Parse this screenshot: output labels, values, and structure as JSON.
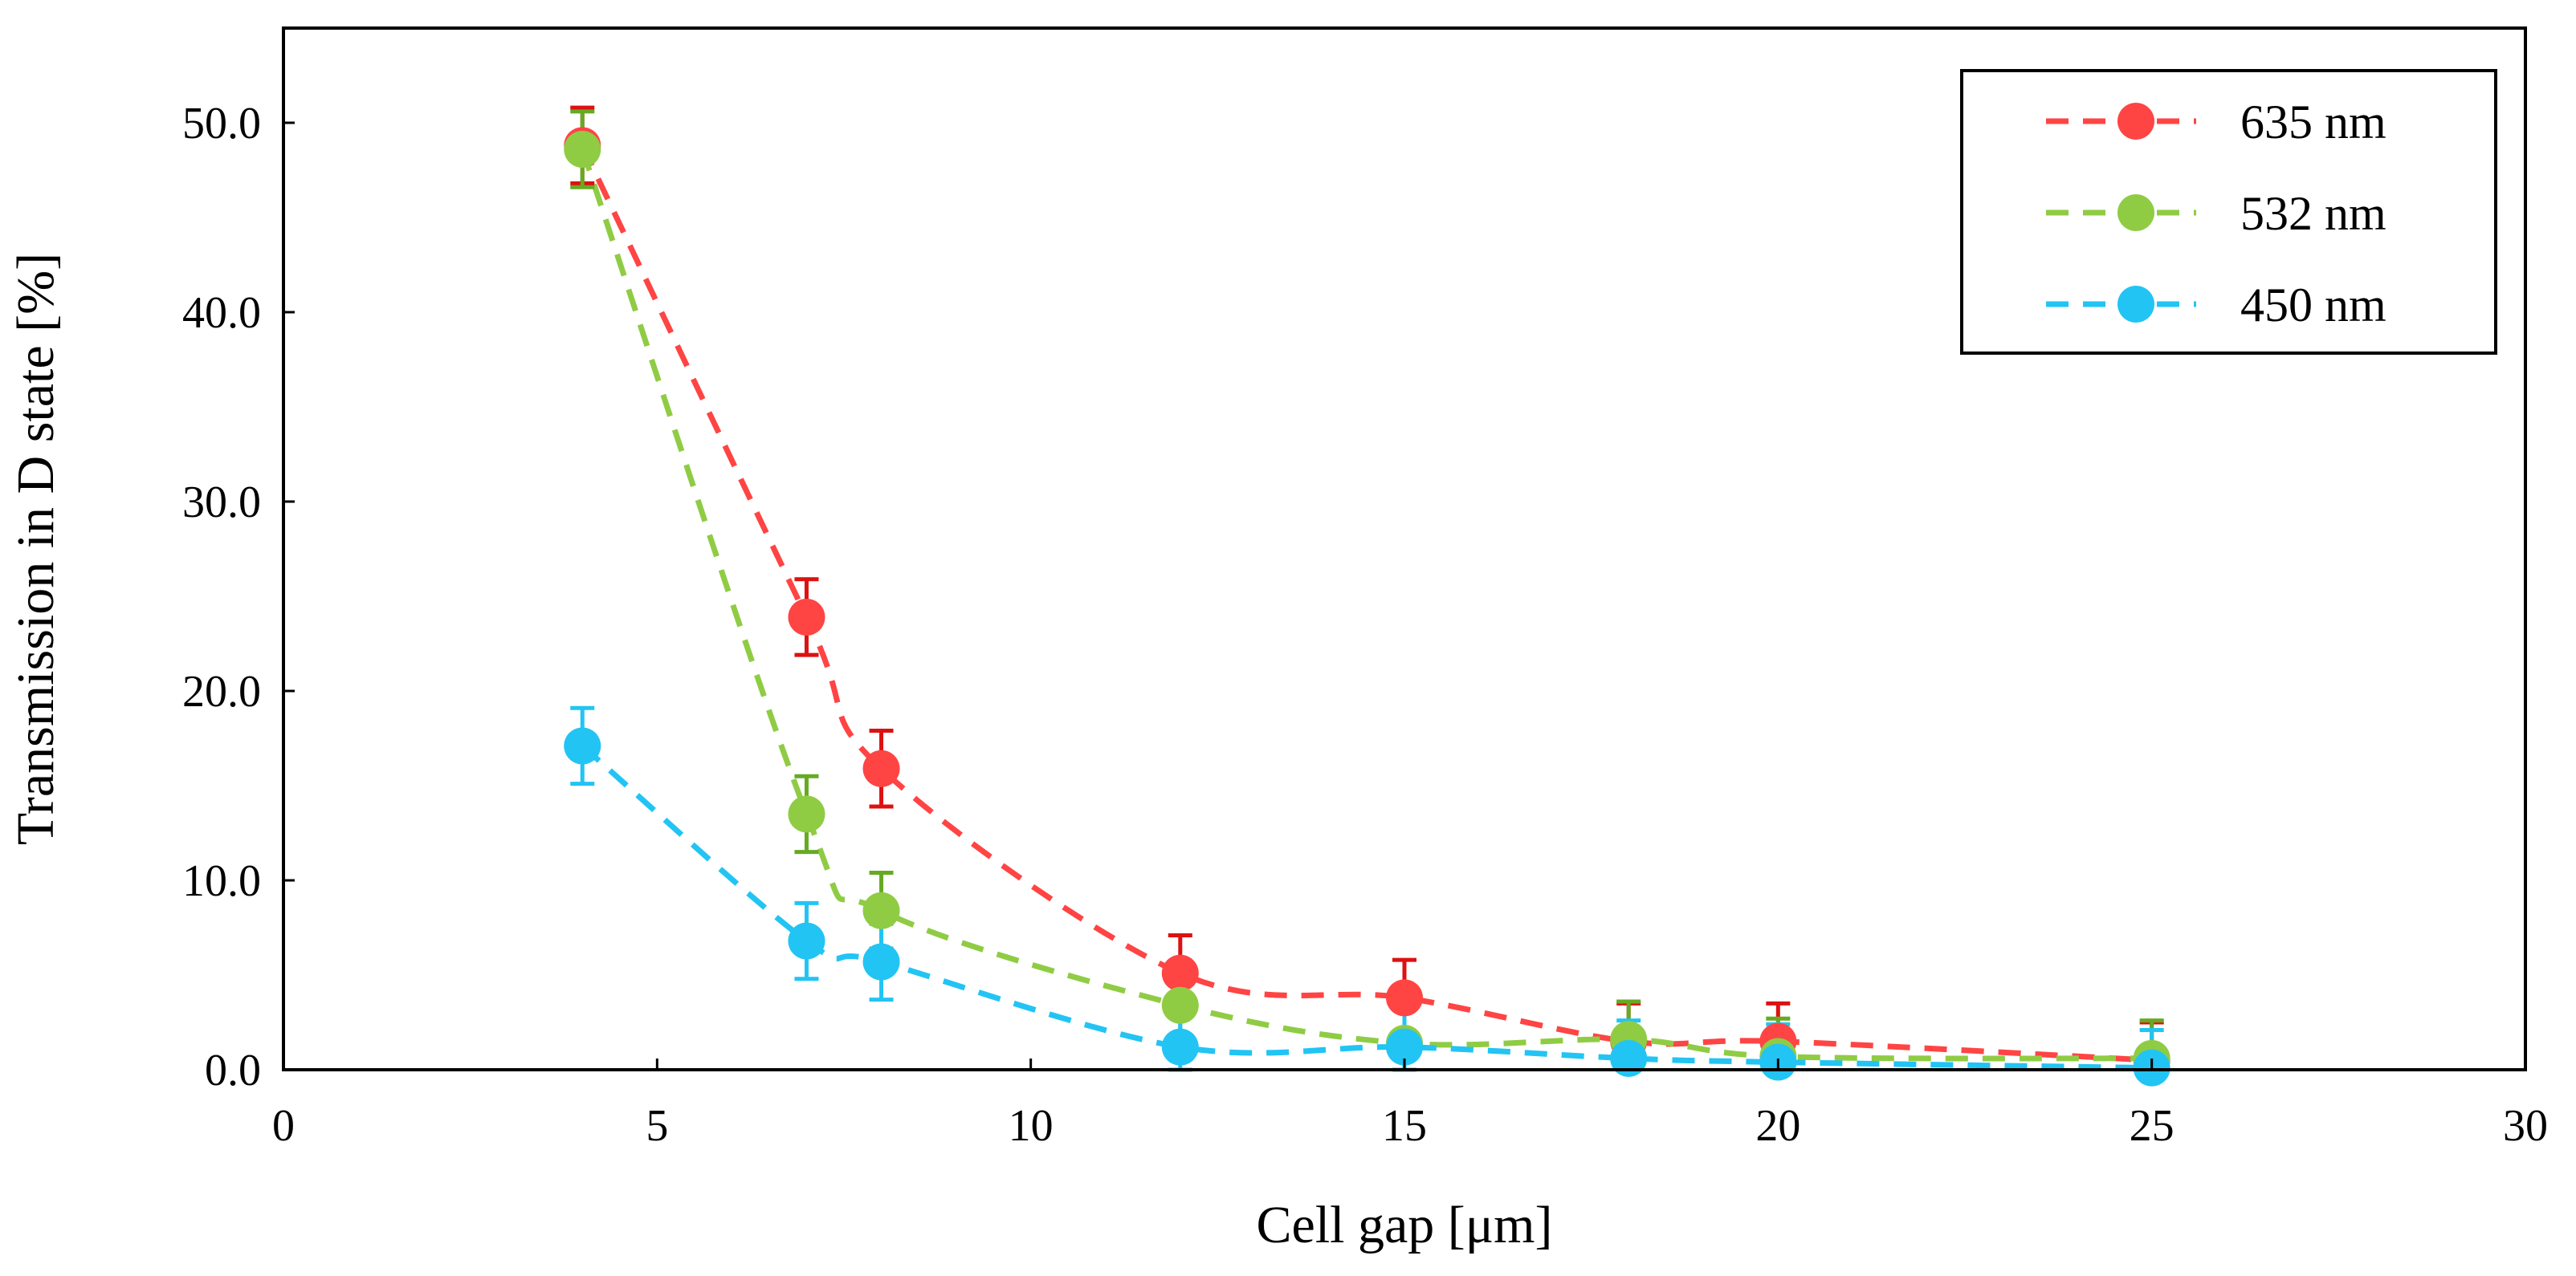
{
  "chart_data": {
    "type": "scatter",
    "xlabel": "Cell gap [μm]",
    "ylabel": "Transmission in D state [%]",
    "xlim": [
      0,
      30
    ],
    "ylim": [
      0,
      55
    ],
    "xticks": [
      "0",
      "5",
      "10",
      "15",
      "20",
      "25",
      "30"
    ],
    "yticks": [
      "0.0",
      "10.0",
      "20.0",
      "30.0",
      "40.0",
      "50.0"
    ],
    "grid": false,
    "legend_position": "top-right",
    "series": [
      {
        "name": "635 nm",
        "color": "#ff4444",
        "error_color": "#dd1111",
        "line_style": "dashed",
        "x": [
          4,
          7,
          8,
          12,
          15,
          18,
          20,
          25
        ],
        "y": [
          48.8,
          23.9,
          15.9,
          5.1,
          3.8,
          1.5,
          1.5,
          0.5
        ],
        "err": [
          2.0,
          2.0,
          2.0,
          2.0,
          2.0,
          2.0,
          2.0,
          2.0
        ]
      },
      {
        "name": "532 nm",
        "color": "#8fcc44",
        "error_color": "#66aa22",
        "line_style": "dashed",
        "x": [
          4,
          7,
          8,
          12,
          15,
          18,
          20,
          25
        ],
        "y": [
          48.6,
          13.5,
          8.4,
          3.4,
          1.4,
          1.6,
          0.7,
          0.6
        ],
        "err": [
          2.0,
          2.0,
          2.0,
          2.0,
          2.0,
          2.0,
          2.0,
          2.0
        ]
      },
      {
        "name": "450 nm",
        "color": "#22c4f4",
        "error_color": "#22c4f4",
        "line_style": "dashed",
        "x": [
          4,
          7,
          8,
          12,
          15,
          18,
          20,
          25
        ],
        "y": [
          17.1,
          6.8,
          5.7,
          1.2,
          1.2,
          0.6,
          0.4,
          0.1
        ],
        "err": [
          2.0,
          2.0,
          2.0,
          2.0,
          2.0,
          2.0,
          2.0,
          2.0
        ]
      }
    ]
  }
}
